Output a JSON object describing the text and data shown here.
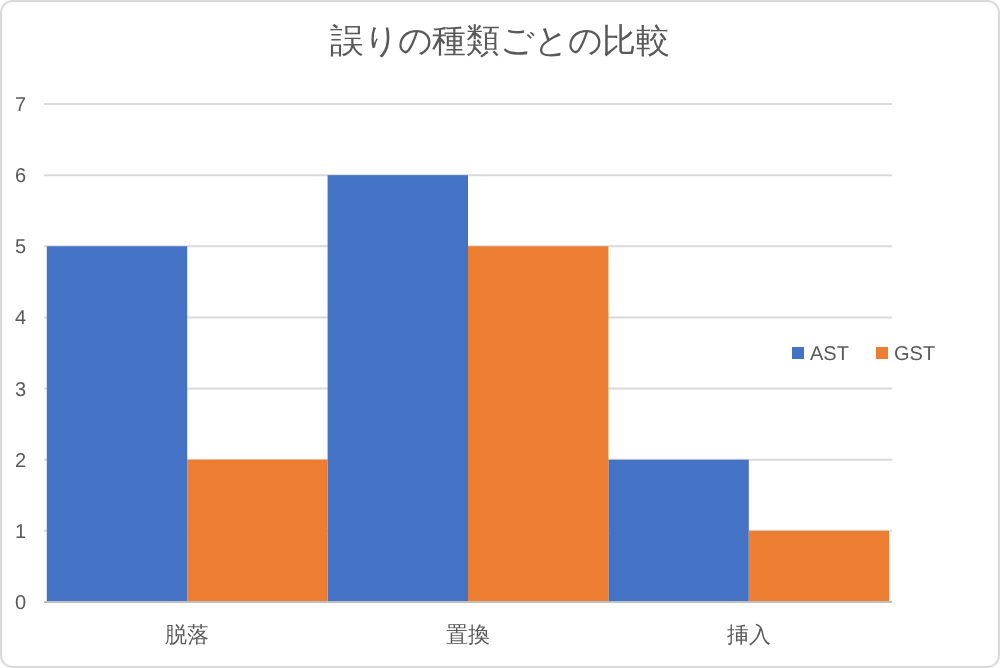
{
  "chart_data": {
    "type": "bar",
    "title": "誤りの種類ごとの比較",
    "categories": [
      "脱落",
      "置換",
      "挿入"
    ],
    "series": [
      {
        "name": "AST",
        "color": "#4472c4",
        "values": [
          5,
          6,
          2
        ]
      },
      {
        "name": "GST",
        "color": "#ed7d31",
        "values": [
          2,
          5,
          1
        ]
      }
    ],
    "ylim": [
      0,
      7
    ],
    "yticks": [
      0,
      1,
      2,
      3,
      4,
      5,
      6,
      7
    ],
    "grid": "y",
    "legend": "right"
  }
}
